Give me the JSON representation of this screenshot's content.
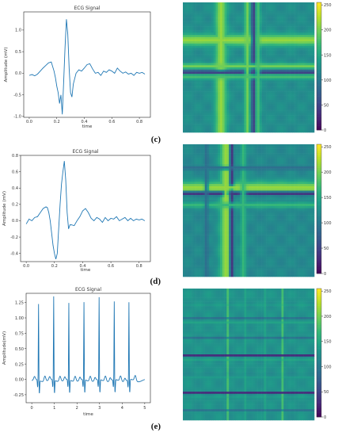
{
  "figure": {
    "panel_labels": [
      "(c)",
      "(d)",
      "(e)"
    ]
  },
  "chart_data": [
    {
      "type": "line",
      "title": "ECG Signal",
      "xlabel": "time",
      "ylabel": "Amplitude (mV)",
      "xlim": [
        -0.04,
        0.88
      ],
      "ylim": [
        -1.02,
        1.42
      ],
      "xticks": [
        "0.0",
        "0.2",
        "0.4",
        "0.6",
        "0.8"
      ],
      "xtick_values": [
        0,
        0.2,
        0.4,
        0.6,
        0.8
      ],
      "yticks": [
        "-1.0",
        "-0.5",
        "0.0",
        "0.5",
        "1.0"
      ],
      "ytick_values": [
        -1,
        -0.5,
        0,
        0.5,
        1
      ],
      "color": "#1f77b4",
      "series": [
        {
          "x": [
            0,
            0.02,
            0.04,
            0.06,
            0.08,
            0.1,
            0.12,
            0.14,
            0.16,
            0.18,
            0.19,
            0.2,
            0.21,
            0.22,
            0.23,
            0.24,
            0.25,
            0.26,
            0.27,
            0.28,
            0.29,
            0.3,
            0.31,
            0.32,
            0.34,
            0.36,
            0.38,
            0.4,
            0.42,
            0.44,
            0.46,
            0.48,
            0.5,
            0.52,
            0.54,
            0.56,
            0.58,
            0.6,
            0.62,
            0.64,
            0.66,
            0.68,
            0.7,
            0.72,
            0.74,
            0.76,
            0.78,
            0.8,
            0.82,
            0.84
          ],
          "values": [
            -0.05,
            -0.03,
            -0.06,
            -0.02,
            0.05,
            0.12,
            0.18,
            0.24,
            0.26,
            0.05,
            -0.1,
            -0.3,
            -0.45,
            -0.7,
            -0.5,
            -0.95,
            -0.2,
            0.6,
            1.25,
            0.9,
            0.1,
            -0.45,
            -0.55,
            -0.25,
            0.0,
            0.08,
            0.05,
            0.12,
            0.2,
            0.22,
            0.1,
            0.0,
            0.02,
            -0.05,
            0.05,
            0.02,
            0.08,
            0.05,
            0.0,
            0.12,
            0.05,
            0.0,
            0.03,
            -0.02,
            0.0,
            -0.05,
            0.02,
            0.0,
            0.02,
            -0.02
          ]
        }
      ]
    },
    {
      "type": "heatmap",
      "colorbar_ticks": [
        "0",
        "50",
        "100",
        "150",
        "200",
        "250"
      ],
      "colorbar_tick_values": [
        0,
        50,
        100,
        150,
        200,
        250
      ],
      "vmin": 0,
      "vmax": 255,
      "background_value": 125,
      "bands": [
        {
          "axis": "both",
          "center": 0.29,
          "width": 0.06,
          "value": 215
        },
        {
          "axis": "both",
          "center": 0.54,
          "width": 0.025,
          "value": 25
        },
        {
          "axis": "both",
          "center": 0.49,
          "width": 0.03,
          "value": 200
        },
        {
          "axis": "both",
          "center": 0.57,
          "width": 0.03,
          "value": 180
        }
      ]
    },
    {
      "type": "line",
      "title": "ECG Signal",
      "xlabel": "time",
      "ylabel": "Amplitude (mV)",
      "xlim": [
        -0.04,
        0.88
      ],
      "ylim": [
        -0.5,
        0.8
      ],
      "xticks": [
        "0.0",
        "0.2",
        "0.4",
        "0.6",
        "0.8"
      ],
      "xtick_values": [
        0,
        0.2,
        0.4,
        0.6,
        0.8
      ],
      "yticks": [
        "-0.4",
        "-0.2",
        "0.0",
        "0.2",
        "0.4",
        "0.6",
        "0.8"
      ],
      "ytick_values": [
        -0.4,
        -0.2,
        0,
        0.2,
        0.4,
        0.6,
        0.8
      ],
      "color": "#1f77b4",
      "series": [
        {
          "x": [
            0,
            0.02,
            0.04,
            0.06,
            0.08,
            0.1,
            0.12,
            0.14,
            0.15,
            0.16,
            0.17,
            0.18,
            0.19,
            0.2,
            0.21,
            0.22,
            0.23,
            0.24,
            0.25,
            0.26,
            0.27,
            0.28,
            0.29,
            0.3,
            0.31,
            0.32,
            0.34,
            0.36,
            0.38,
            0.4,
            0.42,
            0.44,
            0.46,
            0.48,
            0.5,
            0.52,
            0.54,
            0.56,
            0.58,
            0.6,
            0.62,
            0.64,
            0.66,
            0.68,
            0.7,
            0.72,
            0.74,
            0.76,
            0.78,
            0.8,
            0.82,
            0.84
          ],
          "values": [
            -0.04,
            0.02,
            0.0,
            0.04,
            0.05,
            0.1,
            0.15,
            0.17,
            0.16,
            0.1,
            0.0,
            -0.15,
            -0.3,
            -0.4,
            -0.47,
            -0.4,
            -0.1,
            0.2,
            0.45,
            0.6,
            0.73,
            0.5,
            0.1,
            -0.1,
            -0.05,
            -0.05,
            -0.06,
            0.0,
            0.05,
            0.12,
            0.15,
            0.1,
            0.03,
            0.0,
            0.04,
            0.02,
            -0.02,
            0.04,
            0.0,
            0.03,
            0.02,
            0.05,
            0.0,
            0.02,
            0.04,
            0.0,
            0.03,
            0.0,
            0.02,
            0.01,
            0.02,
            0.0
          ]
        }
      ]
    },
    {
      "type": "heatmap",
      "colorbar_ticks": [
        "0",
        "50",
        "100",
        "150",
        "200",
        "250"
      ],
      "colorbar_tick_values": [
        0,
        50,
        100,
        150,
        200,
        250
      ],
      "vmin": 0,
      "vmax": 255,
      "background_value": 120,
      "bands": [
        {
          "axis": "both",
          "center": 0.33,
          "width": 0.07,
          "value": 205
        },
        {
          "axis": "both",
          "center": 0.37,
          "width": 0.025,
          "value": 30
        },
        {
          "axis": "both",
          "center": 0.33,
          "width": 0.03,
          "value": 215
        },
        {
          "axis": "both",
          "center": 0.46,
          "width": 0.03,
          "value": 170
        },
        {
          "axis": "both",
          "center": 0.18,
          "width": 0.02,
          "value": 90
        }
      ]
    },
    {
      "type": "line",
      "title": "ECG Signal",
      "xlabel": "time",
      "ylabel": "Amplitude(mV)",
      "xlim": [
        -0.25,
        5.25
      ],
      "ylim": [
        -0.38,
        1.4
      ],
      "xticks": [
        "0",
        "1",
        "2",
        "3",
        "4",
        "5"
      ],
      "xtick_values": [
        0,
        1,
        2,
        3,
        4,
        5
      ],
      "yticks": [
        "-0.25",
        "0.00",
        "0.25",
        "0.50",
        "0.75",
        "1.00",
        "1.25"
      ],
      "ytick_values": [
        -0.25,
        0,
        0.25,
        0.5,
        0.75,
        1.0,
        1.25
      ],
      "color": "#1f77b4",
      "beats": {
        "times": [
          0.3,
          0.97,
          1.64,
          2.31,
          2.98,
          3.65,
          4.3
        ],
        "peaks": [
          1.25,
          1.37,
          1.26,
          1.27,
          1.35,
          1.28,
          1.27
        ]
      }
    },
    {
      "type": "heatmap",
      "colorbar_ticks": [
        "0",
        "50",
        "100",
        "150",
        "200",
        "250"
      ],
      "colorbar_tick_values": [
        0,
        50,
        100,
        150,
        200,
        250
      ],
      "vmin": 0,
      "vmax": 255,
      "background_value": 130,
      "lines": [
        0.05,
        0.2,
        0.34,
        0.48,
        0.62,
        0.76,
        0.9
      ],
      "dark_rows": [
        0.23,
        0.37,
        0.51,
        0.65,
        0.79,
        0.93
      ],
      "light_rows": [
        0.05,
        0.12,
        0.26,
        0.4,
        0.54,
        0.68,
        0.82
      ]
    }
  ]
}
